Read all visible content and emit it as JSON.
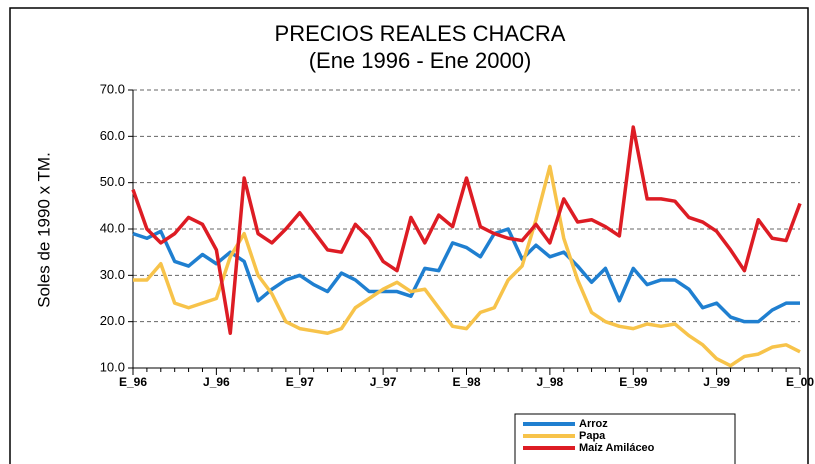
{
  "chart_data": {
    "type": "line",
    "title": "PRECIOS REALES CHACRA",
    "subtitle": "(Ene 1996 - Ene 2000)",
    "y_label": "Soles de 1990 x TM.",
    "categories": [
      "E_96",
      null,
      null,
      null,
      null,
      null,
      "J_96",
      null,
      null,
      null,
      null,
      null,
      "E_97",
      null,
      null,
      null,
      null,
      null,
      "J_97",
      null,
      null,
      null,
      null,
      null,
      "E_98",
      null,
      null,
      null,
      null,
      null,
      "J_98",
      null,
      null,
      null,
      null,
      null,
      "E_99",
      null,
      null,
      null,
      null,
      null,
      "J_99",
      null,
      null,
      null,
      null,
      null,
      "E_00"
    ],
    "series": [
      {
        "name": "Arroz",
        "color": "#1f7fd0",
        "values": [
          39,
          38,
          39.5,
          33,
          32,
          34.5,
          32.5,
          35,
          33,
          24.5,
          27,
          29,
          30,
          28,
          26.5,
          30.5,
          29,
          26.5,
          26.5,
          26.5,
          25.5,
          31.5,
          31,
          37,
          36,
          34,
          39,
          40,
          33.5,
          36.5,
          34,
          35,
          32,
          28.5,
          31.5,
          24.5,
          31.5,
          28,
          29,
          29,
          27,
          23,
          24,
          21,
          20,
          20,
          22.5,
          24,
          24
        ]
      },
      {
        "name": "Papa",
        "color": "#f7c34a",
        "values": [
          29,
          29,
          32.5,
          24,
          23,
          24,
          25,
          34,
          39,
          30,
          26,
          20,
          18.5,
          18,
          17.5,
          18.5,
          23,
          25,
          27,
          28.5,
          26.5,
          27,
          23,
          19,
          18.5,
          22,
          23,
          29,
          32,
          42,
          53.5,
          38,
          29,
          22,
          20,
          19,
          18.5,
          19.5,
          19,
          19.5,
          17,
          15,
          12,
          10.5,
          12.5,
          13,
          14.5,
          15,
          13.5
        ]
      },
      {
        "name": "Maíz Amiláceo",
        "color": "#dd1c24",
        "values": [
          48.5,
          40,
          37,
          39,
          42.5,
          41,
          35.5,
          17.5,
          51,
          39,
          37,
          40,
          43.5,
          39.5,
          35.5,
          35,
          41,
          38,
          33,
          31,
          42.5,
          37,
          43,
          40.5,
          51,
          40.5,
          39,
          38,
          37.5,
          41,
          37,
          46.5,
          41.5,
          42,
          40.5,
          38.5,
          62,
          46.5,
          46.5,
          46,
          42.5,
          41.5,
          39.5,
          35.5,
          31,
          42,
          38,
          37.5,
          45.5
        ]
      }
    ],
    "ylim": [
      10,
      70
    ],
    "yticks": [
      {
        "value": 10,
        "label": "10.0"
      },
      {
        "value": 20,
        "label": "20.0"
      },
      {
        "value": 30,
        "label": "30.0"
      },
      {
        "value": 40,
        "label": "40.0"
      },
      {
        "value": 50,
        "label": "50.0"
      },
      {
        "value": 60,
        "label": "60.0"
      },
      {
        "value": 70,
        "label": "70.0"
      }
    ],
    "grid": true,
    "legend": "bottom"
  }
}
